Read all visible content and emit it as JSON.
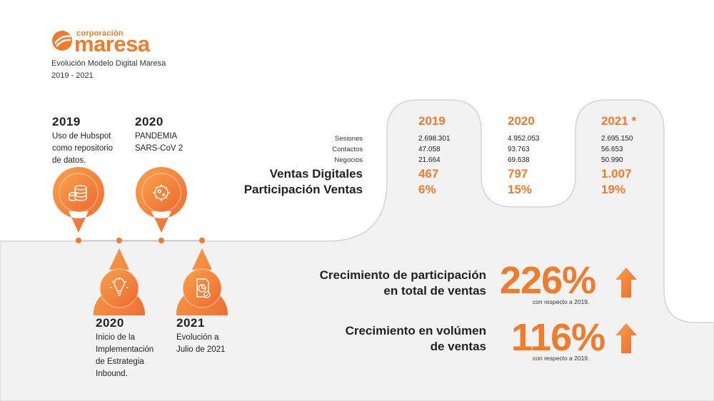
{
  "brand": {
    "logo_small": "corporación",
    "logo_main": "maresa",
    "color": "#ef7b2c"
  },
  "header": {
    "title": "Evolución Modelo Digital Maresa",
    "period": "2019 - 2021"
  },
  "timeline": [
    {
      "year": "2019",
      "lines": [
        "Uso de Hubspot",
        "como repositorio",
        "de datos."
      ],
      "icon": "database-icon"
    },
    {
      "year": "2020",
      "lines": [
        "PANDEMIA",
        "SARS-CoV 2"
      ],
      "icon": "virus-icon"
    },
    {
      "year": "2020",
      "lines": [
        "Inicio de la",
        "Implementación",
        "de Estrategia",
        "Inbound."
      ],
      "icon": "lightbulb-icon"
    },
    {
      "year": "2021",
      "lines": [
        "Evolución a",
        "Julio de 2021"
      ],
      "icon": "report-chart-icon"
    }
  ],
  "metrics": {
    "labels": [
      "Sesiones",
      "Contactos",
      "Negocios"
    ],
    "big_labels": [
      "Ventas Digitales",
      "Participación Ventas"
    ],
    "columns": [
      {
        "year": "2019",
        "values": [
          "2.698.301",
          "47.058",
          "21.664"
        ],
        "ventas": "467",
        "participacion": "6%"
      },
      {
        "year": "2020",
        "values": [
          "4.952.053",
          "93.763",
          "69.638"
        ],
        "ventas": "797",
        "participacion": "15%"
      },
      {
        "year": "2021 *",
        "values": [
          "2.695.150",
          "56.653",
          "50.990"
        ],
        "ventas": "1.007",
        "participacion": "19%"
      }
    ]
  },
  "growth": [
    {
      "label_lines": [
        "Crecimiento de participación",
        "en total de ventas"
      ],
      "value": "226%",
      "note": "con respecto a 2019.",
      "icon": "arrow-up-icon"
    },
    {
      "label_lines": [
        "Crecimiento en volúmen",
        "de ventas"
      ],
      "value": "116%",
      "note": "con respecto a 2019.",
      "icon": "arrow-up-icon"
    }
  ],
  "colors": {
    "accent": "#ef7b2c",
    "gradient_light": "#f9a04a",
    "gradient_dark": "#ec6a31",
    "panel_bg": "#f2f2f2",
    "line_gray": "#cfcfcf"
  }
}
